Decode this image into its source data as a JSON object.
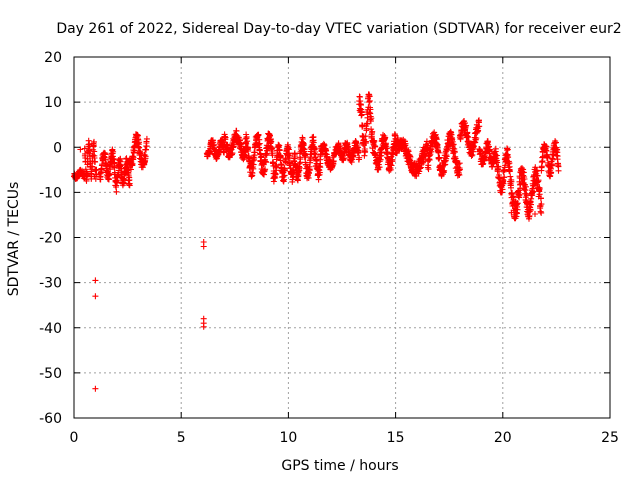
{
  "chart_data": {
    "type": "scatter",
    "title": "Day 261 of 2022, Sidereal Day-to-day VTEC variation (SDTVAR) for receiver eur2",
    "xlabel": "GPS time / hours",
    "ylabel": "SDTVAR / TECUs",
    "xlim": [
      0,
      25
    ],
    "ylim": [
      -60,
      20
    ],
    "xticks": [
      0,
      5,
      10,
      15,
      20,
      25
    ],
    "yticks": [
      -60,
      -50,
      -40,
      -30,
      -20,
      -10,
      0,
      10,
      20
    ],
    "grid": true,
    "marker": "+",
    "color": "#ff0000",
    "series": [
      {
        "name": "SDTVAR eur2",
        "segments": [
          {
            "x0": 0.0,
            "x1": 0.5,
            "mid": -6,
            "amp": 0.6,
            "noise": 0.5
          },
          {
            "x0": 0.5,
            "x1": 1.05,
            "mid": -3,
            "amp": 3.5,
            "noise": 1.2
          },
          {
            "x0": 1.2,
            "x1": 1.9,
            "mid": -4,
            "amp": 2.5,
            "noise": 1.2
          },
          {
            "x0": 1.9,
            "x1": 2.6,
            "mid": -6,
            "amp": 2.5,
            "noise": 1.5
          },
          {
            "x0": 2.6,
            "x1": 3.4,
            "mid": -1,
            "amp": 3.0,
            "noise": 1.2
          },
          {
            "x0": 6.2,
            "x1": 7.0,
            "mid": -0.5,
            "amp": 1.5,
            "noise": 0.8
          },
          {
            "x0": 7.0,
            "x1": 8.0,
            "mid": 0.5,
            "amp": 2.0,
            "noise": 1.2
          },
          {
            "x0": 8.0,
            "x1": 9.3,
            "mid": -1.5,
            "amp": 3.5,
            "noise": 1.5
          },
          {
            "x0": 9.3,
            "x1": 10.3,
            "mid": -3.5,
            "amp": 3.0,
            "noise": 1.3
          },
          {
            "x0": 10.3,
            "x1": 11.5,
            "mid": -2.5,
            "amp": 3.5,
            "noise": 1.5
          },
          {
            "x0": 11.5,
            "x1": 12.5,
            "mid": -2.0,
            "amp": 2.0,
            "noise": 1.0
          },
          {
            "x0": 12.5,
            "x1": 13.3,
            "mid": -1.0,
            "amp": 1.5,
            "noise": 1.0
          },
          {
            "x0": 13.3,
            "x1": 14.0,
            "mid": 5.0,
            "amp": 5.0,
            "noise": 2.0
          },
          {
            "x0": 14.0,
            "x1": 15.0,
            "mid": -1.0,
            "amp": 3.0,
            "noise": 1.5
          },
          {
            "x0": 15.0,
            "x1": 16.5,
            "mid": -2.0,
            "amp": 3.0,
            "noise": 1.5
          },
          {
            "x0": 16.5,
            "x1": 18.0,
            "mid": -1.5,
            "amp": 3.5,
            "noise": 1.5
          },
          {
            "x0": 18.0,
            "x1": 18.9,
            "mid": 2.0,
            "amp": 3.0,
            "noise": 1.2
          },
          {
            "x0": 18.9,
            "x1": 19.6,
            "mid": -1.5,
            "amp": 2.0,
            "noise": 1.0
          },
          {
            "x0": 19.6,
            "x1": 20.4,
            "mid": -5.5,
            "amp": 4.0,
            "noise": 1.5
          },
          {
            "x0": 20.4,
            "x1": 21.8,
            "mid": -10.0,
            "amp": 4.0,
            "noise": 2.0
          },
          {
            "x0": 21.8,
            "x1": 22.6,
            "mid": -2.5,
            "amp": 3.0,
            "noise": 1.2
          }
        ],
        "outliers": [
          {
            "x": 0.95,
            "y": -6.5
          },
          {
            "x": 1.0,
            "y": -29.5
          },
          {
            "x": 1.0,
            "y": -33.0
          },
          {
            "x": 1.0,
            "y": -53.5
          },
          {
            "x": 6.05,
            "y": -21.0
          },
          {
            "x": 6.05,
            "y": -22.0
          },
          {
            "x": 6.05,
            "y": -38.0
          },
          {
            "x": 6.05,
            "y": -39.0
          },
          {
            "x": 6.05,
            "y": -39.8
          },
          {
            "x": 0.3,
            "y": -0.5
          },
          {
            "x": 20.4,
            "y": -14.5
          },
          {
            "x": 21.5,
            "y": -14.8
          }
        ]
      }
    ]
  }
}
